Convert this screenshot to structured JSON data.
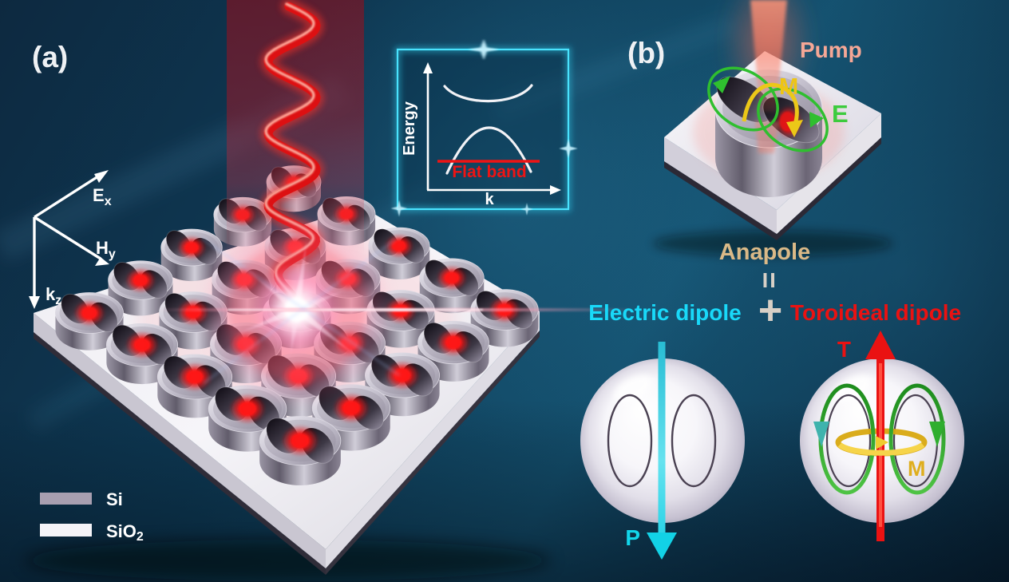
{
  "colors": {
    "background_deep": "#081c2e",
    "background_mid": "#14506e",
    "accent_cyan": "#49e2fd",
    "beam_red": "#dd1012",
    "pump_salmon": "#f5a796",
    "anapole_tan": "#dab987",
    "electric_cyan": "#19d9f9",
    "toroidal_red": "#ea1212",
    "field_green": "#2fbf2f",
    "moment_yellow": "#eec514",
    "silicon_grey": "#a89fb0",
    "silica_white": "#f4f3f7",
    "operator_grey": "#d8d0c6"
  },
  "panel_a": {
    "label": "(a)",
    "axis_e": {
      "main": "E",
      "sub": "x"
    },
    "axis_h": {
      "main": "H",
      "sub": "y"
    },
    "axis_k": {
      "main": "k",
      "sub": "z"
    },
    "inset": {
      "y_axis_label": "Energy",
      "x_axis_label": "k",
      "flat_band_label": "Flat band"
    },
    "legend": {
      "si_label": "Si",
      "sio2_main": "SiO",
      "sio2_sub": "2"
    }
  },
  "panel_b": {
    "label": "(b)",
    "pump_label": "Pump",
    "magnetic_label": "M",
    "electric_label": "E",
    "anapole_label": "Anapole",
    "equals_symbol": "=",
    "plus_symbol": "+",
    "electric_dipole_label": "Electric dipole",
    "toroidal_dipole_label": "Toroideal dipole",
    "p_label": "P",
    "t_label": "T",
    "m_label": "M"
  }
}
